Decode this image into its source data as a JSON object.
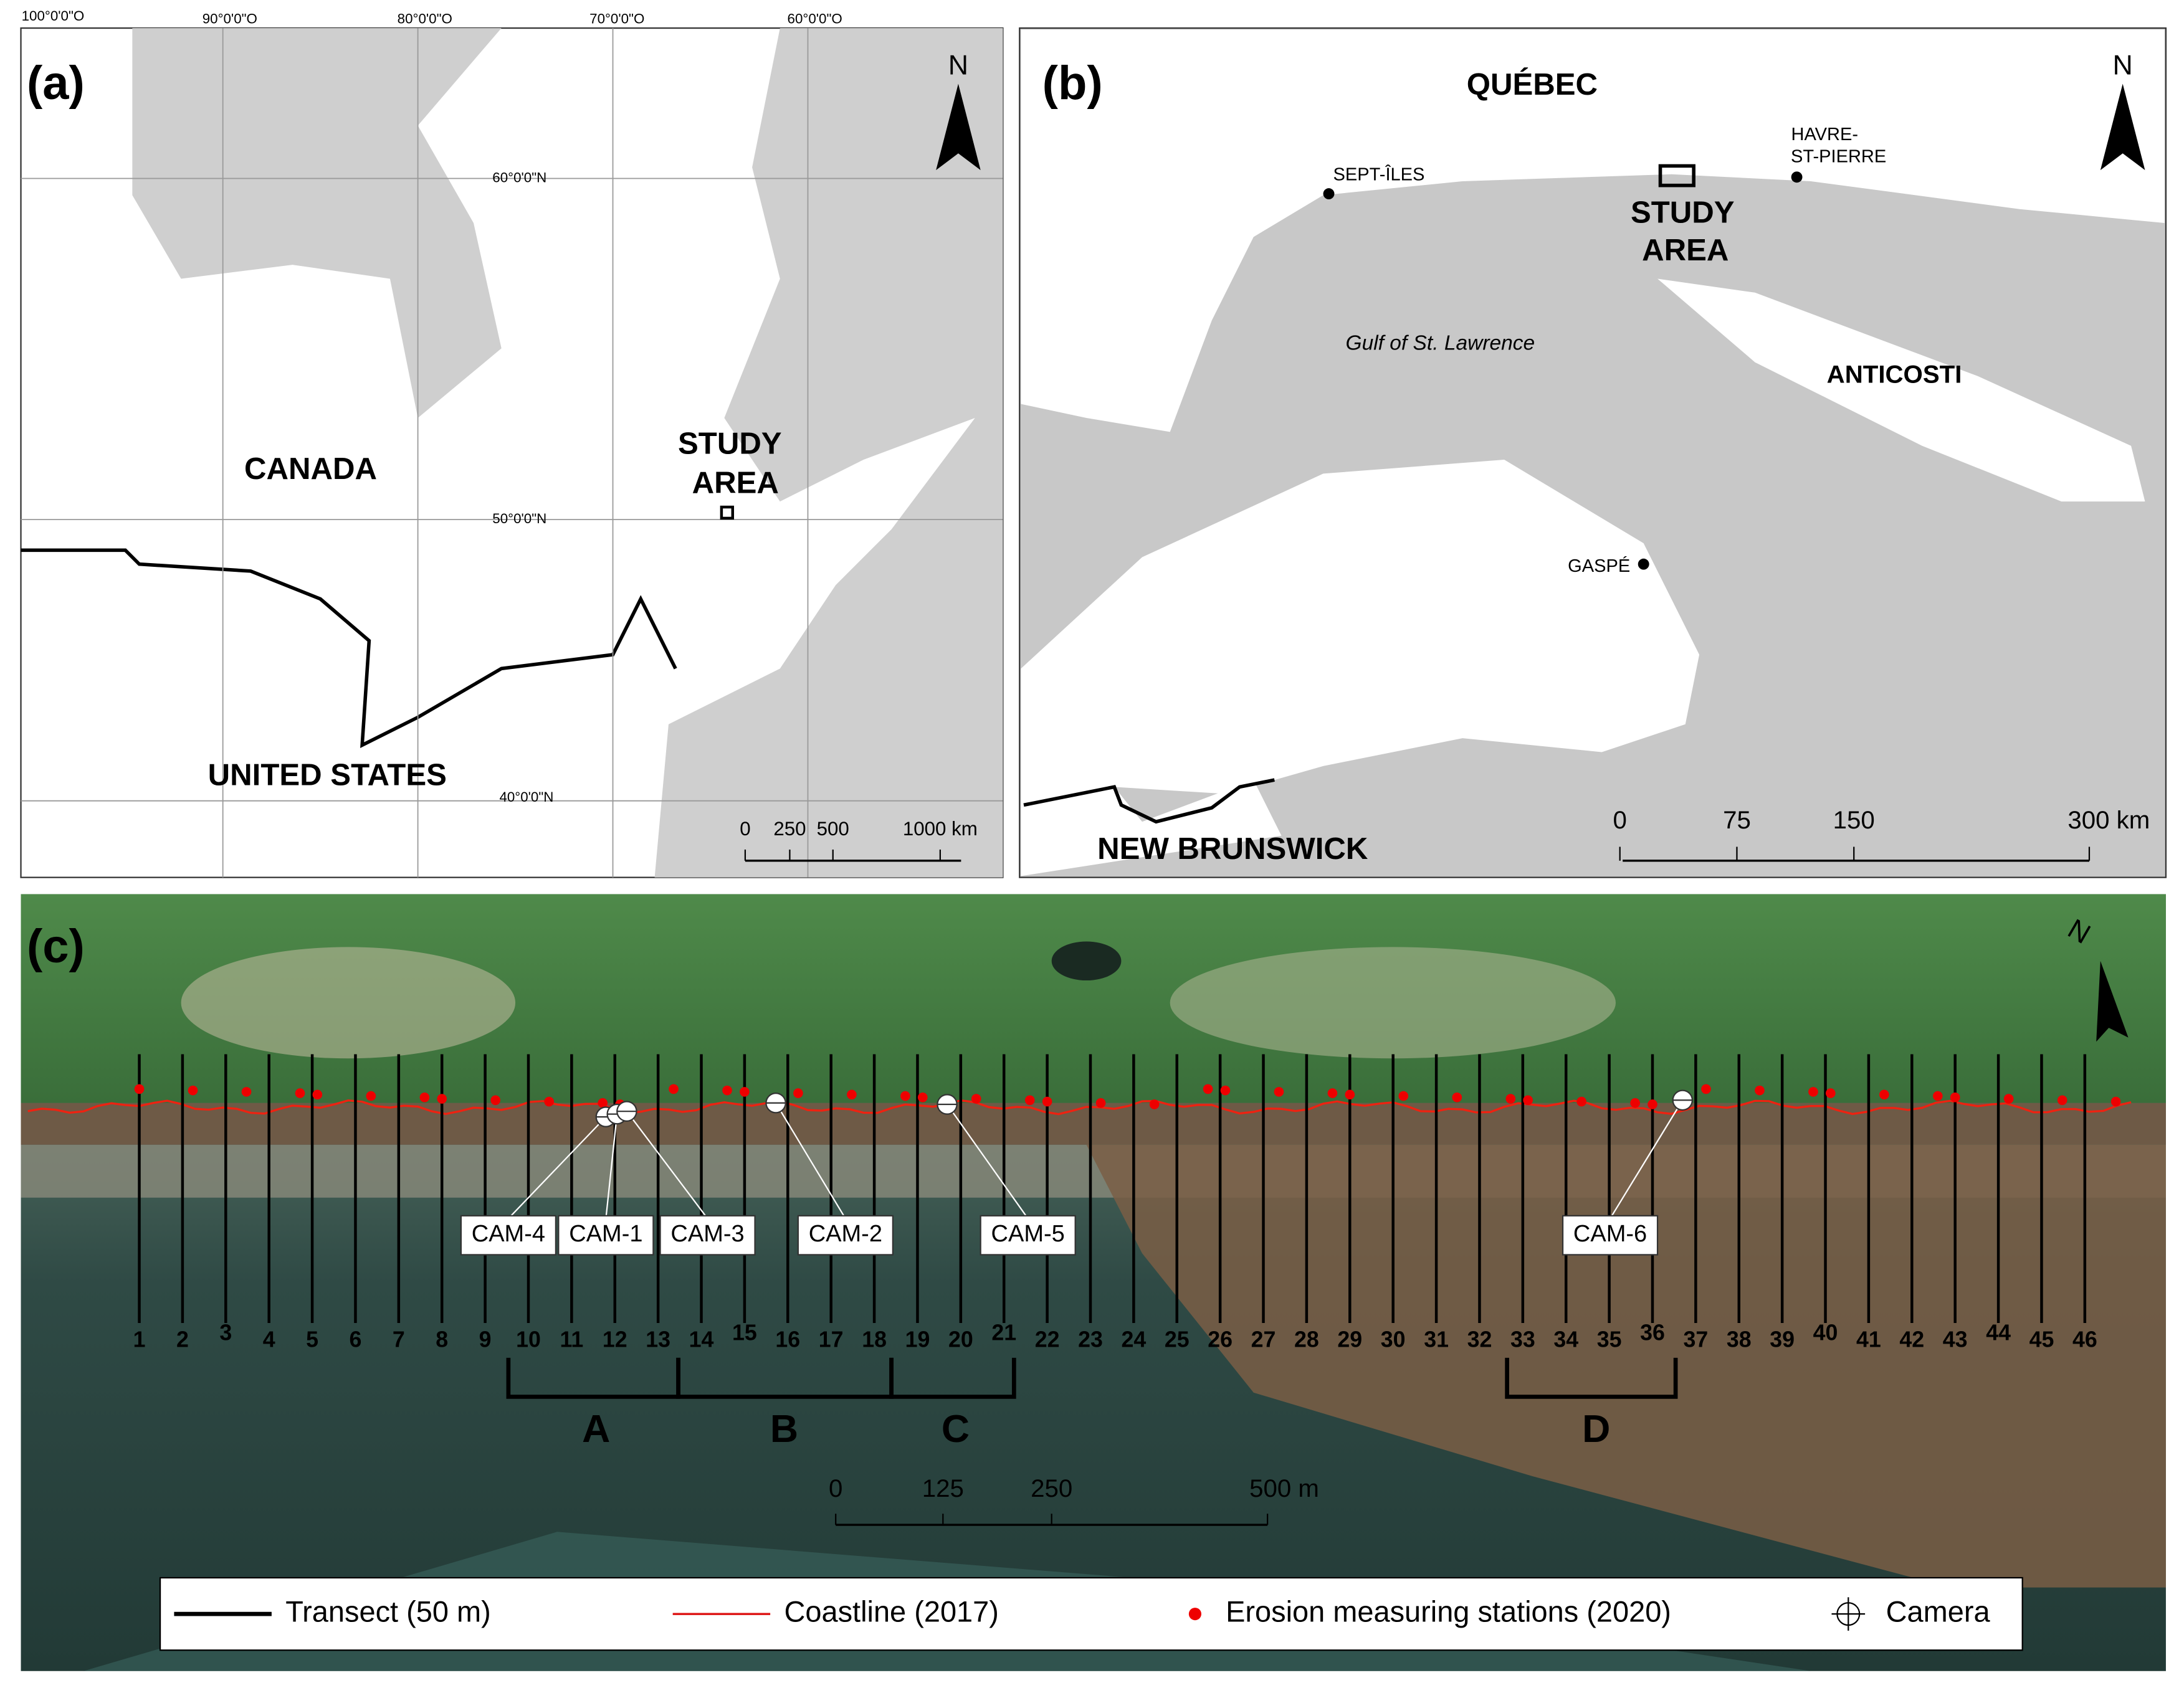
{
  "panel_a": {
    "label": "(a)",
    "north": "N",
    "graticule_labels": [
      "100°0'0\"O",
      "90°0'0\"O",
      "80°0'0\"O",
      "70°0'0\"O",
      "60°0'0\"O",
      "60°0'0\"N",
      "50°0'0\"N",
      "40°0'0\"N"
    ],
    "place_labels": [
      "CANADA",
      "UNITED STATES",
      "STUDY",
      "AREA"
    ],
    "scale_labels": [
      "0",
      "250",
      "500",
      "1000 km"
    ]
  },
  "panel_b": {
    "label": "(b)",
    "north": "N",
    "place_labels": [
      "QUÉBEC",
      "SEPT-ÎLES",
      "HAVRE-",
      "ST-PIERRE",
      "STUDY",
      "AREA",
      "Gulf of St. Lawrence",
      "ANTICOSTI",
      "GASPÉ",
      "NEW BRUNSWICK"
    ],
    "scale_labels": [
      "0",
      "75",
      "150",
      "300 km"
    ]
  },
  "panel_c": {
    "label": "(c)",
    "north": "N",
    "transects": [
      "1",
      "2",
      "3",
      "4",
      "5",
      "6",
      "7",
      "8",
      "9",
      "10",
      "11",
      "12",
      "13",
      "14",
      "15",
      "16",
      "17",
      "18",
      "19",
      "20",
      "21",
      "22",
      "23",
      "24",
      "25",
      "26",
      "27",
      "28",
      "29",
      "30",
      "31",
      "32",
      "33",
      "34",
      "35",
      "36",
      "37",
      "38",
      "39",
      "40",
      "41",
      "42",
      "43",
      "44",
      "45",
      "46"
    ],
    "cameras": [
      "CAM-4",
      "CAM-1",
      "CAM-3",
      "CAM-2",
      "CAM-5",
      "CAM-6"
    ],
    "sections": [
      "A",
      "B",
      "C",
      "D"
    ],
    "scale_labels": [
      "0",
      "125",
      "250",
      "500 m"
    ],
    "legend": [
      "Transect (50 m)",
      "Coastline (2017)",
      "Erosion measuring stations (2020)",
      "Camera"
    ]
  }
}
